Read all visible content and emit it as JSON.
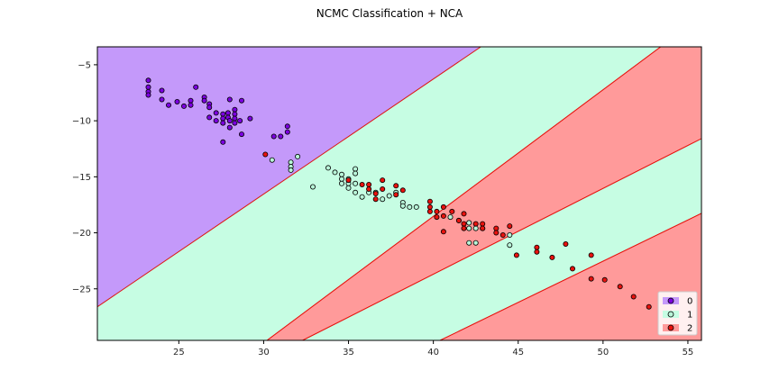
{
  "chart_data": {
    "type": "scatter",
    "title": "NCMC Classification + NCA",
    "xlabel": "",
    "ylabel": "",
    "xlim": [
      20.2,
      55.8
    ],
    "ylim": [
      -29.6,
      -3.4
    ],
    "xticks": [
      25,
      30,
      35,
      40,
      45,
      50,
      55
    ],
    "yticks": [
      -5,
      -10,
      -15,
      -20,
      -25
    ],
    "grid": false,
    "legend_position": "bottom-right",
    "class_colors": {
      "0": "#7b00e0",
      "1": "#b8f5d8",
      "2": "#e8120e"
    },
    "region_colors": {
      "0": "#c499fa",
      "1": "#c6fde3",
      "2": "#ff9a9a"
    },
    "regions": [
      {
        "class": "0",
        "polygon": [
          [
            20.2,
            -3.4
          ],
          [
            42.8,
            -3.4
          ],
          [
            20.2,
            -26.6
          ]
        ]
      },
      {
        "class": "1",
        "polygon": [
          [
            42.8,
            -3.4
          ],
          [
            53.4,
            -3.4
          ],
          [
            30.2,
            -29.6
          ],
          [
            20.2,
            -29.6
          ],
          [
            20.2,
            -26.6
          ]
        ]
      },
      {
        "class": "2",
        "polygon": [
          [
            53.4,
            -3.4
          ],
          [
            66.5,
            -3.4
          ],
          [
            32.3,
            -29.6
          ],
          [
            30.2,
            -29.6
          ]
        ]
      },
      {
        "class": "1",
        "polygon": [
          [
            66.5,
            -3.4
          ],
          [
            76.0,
            -3.4
          ],
          [
            40.4,
            -29.6
          ],
          [
            32.3,
            -29.6
          ]
        ]
      },
      {
        "class": "2",
        "polygon": [
          [
            76.0,
            -3.4
          ],
          [
            55.8,
            -3.4
          ],
          [
            55.8,
            -29.6
          ],
          [
            40.4,
            -29.6
          ]
        ]
      }
    ],
    "boundary_color": "#e8120e",
    "series": [
      {
        "name": "0",
        "points": [
          [
            23.2,
            -6.4
          ],
          [
            23.2,
            -7.0
          ],
          [
            23.2,
            -7.4
          ],
          [
            23.2,
            -7.7
          ],
          [
            24.0,
            -7.3
          ],
          [
            24.0,
            -8.1
          ],
          [
            24.4,
            -8.6
          ],
          [
            24.9,
            -8.3
          ],
          [
            25.3,
            -8.7
          ],
          [
            25.7,
            -8.2
          ],
          [
            25.7,
            -8.6
          ],
          [
            26.0,
            -7.0
          ],
          [
            26.5,
            -7.9
          ],
          [
            26.5,
            -8.2
          ],
          [
            26.8,
            -8.5
          ],
          [
            26.8,
            -8.8
          ],
          [
            26.8,
            -9.7
          ],
          [
            27.2,
            -9.3
          ],
          [
            27.2,
            -10.0
          ],
          [
            27.6,
            -9.4
          ],
          [
            27.6,
            -9.8
          ],
          [
            27.6,
            -10.2
          ],
          [
            27.6,
            -11.9
          ],
          [
            27.9,
            -9.3
          ],
          [
            27.9,
            -9.7
          ],
          [
            28.0,
            -8.1
          ],
          [
            28.0,
            -10.0
          ],
          [
            28.0,
            -10.6
          ],
          [
            28.3,
            -9.0
          ],
          [
            28.3,
            -9.4
          ],
          [
            28.3,
            -9.8
          ],
          [
            28.3,
            -10.2
          ],
          [
            28.6,
            -10.0
          ],
          [
            28.7,
            -11.2
          ],
          [
            28.7,
            -8.2
          ],
          [
            29.2,
            -9.8
          ],
          [
            30.6,
            -11.4
          ],
          [
            31.0,
            -11.4
          ],
          [
            31.4,
            -10.5
          ],
          [
            31.4,
            -11.0
          ]
        ]
      },
      {
        "name": "1",
        "points": [
          [
            30.5,
            -13.5
          ],
          [
            31.6,
            -13.7
          ],
          [
            31.6,
            -14.1
          ],
          [
            31.6,
            -14.4
          ],
          [
            32.0,
            -13.2
          ],
          [
            32.9,
            -15.9
          ],
          [
            33.8,
            -14.2
          ],
          [
            34.2,
            -14.6
          ],
          [
            34.6,
            -14.8
          ],
          [
            34.6,
            -15.2
          ],
          [
            34.6,
            -15.6
          ],
          [
            35.0,
            -15.2
          ],
          [
            35.0,
            -15.6
          ],
          [
            35.0,
            -16.0
          ],
          [
            35.4,
            -14.3
          ],
          [
            35.4,
            -14.7
          ],
          [
            35.4,
            -15.6
          ],
          [
            35.4,
            -16.4
          ],
          [
            35.8,
            -16.8
          ],
          [
            36.2,
            -16.4
          ],
          [
            36.6,
            -16.4
          ],
          [
            37.0,
            -17.0
          ],
          [
            37.4,
            -16.7
          ],
          [
            37.8,
            -16.4
          ],
          [
            38.2,
            -17.3
          ],
          [
            38.2,
            -17.6
          ],
          [
            38.6,
            -17.7
          ],
          [
            39.0,
            -17.7
          ],
          [
            41.0,
            -18.6
          ],
          [
            41.5,
            -18.9
          ],
          [
            42.1,
            -19.6
          ],
          [
            42.1,
            -19.1
          ],
          [
            42.1,
            -20.9
          ],
          [
            42.5,
            -19.6
          ],
          [
            42.5,
            -20.9
          ],
          [
            42.9,
            -19.6
          ],
          [
            44.5,
            -20.2
          ],
          [
            44.5,
            -21.1
          ]
        ]
      },
      {
        "name": "2",
        "points": [
          [
            30.1,
            -13.0
          ],
          [
            35.0,
            -15.3
          ],
          [
            35.8,
            -15.7
          ],
          [
            36.2,
            -15.7
          ],
          [
            36.2,
            -16.1
          ],
          [
            36.6,
            -16.5
          ],
          [
            36.6,
            -17.0
          ],
          [
            37.0,
            -15.3
          ],
          [
            37.0,
            -16.1
          ],
          [
            37.8,
            -15.8
          ],
          [
            37.8,
            -16.6
          ],
          [
            38.2,
            -16.2
          ],
          [
            39.8,
            -17.2
          ],
          [
            39.8,
            -17.7
          ],
          [
            39.8,
            -18.1
          ],
          [
            40.2,
            -18.1
          ],
          [
            40.2,
            -18.6
          ],
          [
            40.6,
            -17.7
          ],
          [
            40.6,
            -18.5
          ],
          [
            40.6,
            -19.9
          ],
          [
            41.1,
            -18.1
          ],
          [
            41.5,
            -18.9
          ],
          [
            41.8,
            -18.3
          ],
          [
            41.8,
            -19.2
          ],
          [
            41.8,
            -19.6
          ],
          [
            42.5,
            -19.2
          ],
          [
            42.9,
            -19.2
          ],
          [
            42.9,
            -19.6
          ],
          [
            43.7,
            -19.6
          ],
          [
            43.7,
            -20.0
          ],
          [
            44.1,
            -20.2
          ],
          [
            44.5,
            -19.4
          ],
          [
            44.9,
            -22.0
          ],
          [
            46.1,
            -21.3
          ],
          [
            46.1,
            -21.7
          ],
          [
            47.0,
            -22.2
          ],
          [
            47.8,
            -21.0
          ],
          [
            48.2,
            -23.2
          ],
          [
            49.3,
            -22.0
          ],
          [
            49.3,
            -24.1
          ],
          [
            50.1,
            -24.2
          ],
          [
            51.0,
            -24.8
          ],
          [
            51.8,
            -25.7
          ],
          [
            52.7,
            -26.6
          ]
        ]
      }
    ],
    "legend": [
      {
        "label": "0",
        "class": "0"
      },
      {
        "label": "1",
        "class": "1"
      },
      {
        "label": "2",
        "class": "2"
      }
    ]
  }
}
